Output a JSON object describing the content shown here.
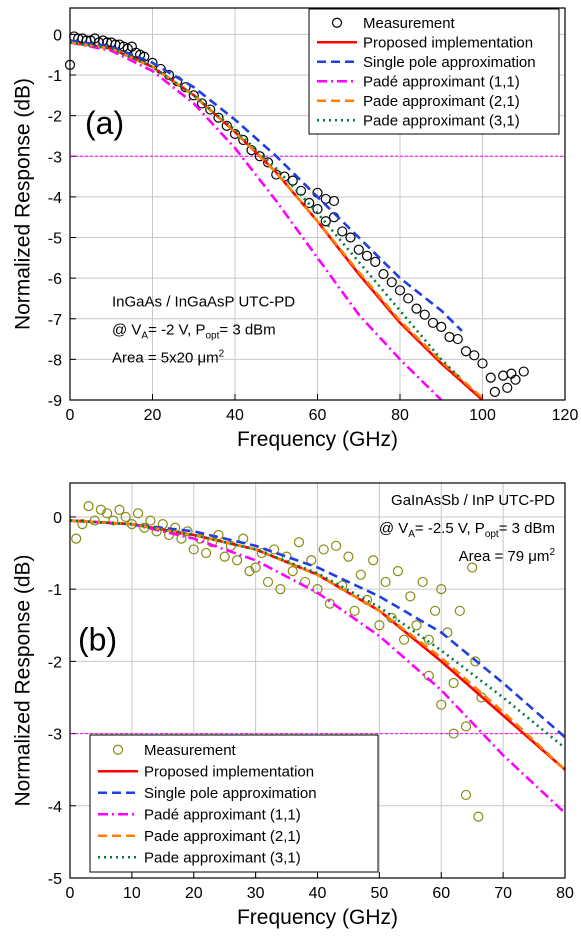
{
  "chart_data": [
    {
      "type": "line",
      "panel_label": "(a)",
      "xlabel": "Frequency (GHz)",
      "ylabel": "Normalized Response (dB)",
      "xlim": [
        0,
        120
      ],
      "ylim": [
        -9,
        0.65
      ],
      "xticks": [
        0,
        20,
        40,
        60,
        80,
        100,
        120
      ],
      "yticks": [
        -9,
        -8,
        -7,
        -6,
        -5,
        -4,
        -3,
        -2,
        -1,
        0
      ],
      "grid": true,
      "hline": -3,
      "hline_color": "#ff00ff",
      "legend": "upper right",
      "annotations": [
        [
          {
            "text": "InGaAs / InGaAsP UTC-PD"
          }
        ],
        [
          {
            "text": "@ V"
          },
          {
            "text": "A",
            "baseline": "sub"
          },
          {
            "text": "= -2 V, P"
          },
          {
            "text": "opt",
            "baseline": "sub"
          },
          {
            "text": "= 3 dBm"
          }
        ],
        [
          {
            "text": "Area = 5x20 μm"
          },
          {
            "text": "2",
            "baseline": "super"
          }
        ]
      ],
      "series": [
        {
          "name": "Measurement",
          "color": "#000000",
          "style": "marker",
          "x": [
            0,
            1,
            2,
            3,
            4,
            5,
            6,
            7,
            8,
            9,
            10,
            11,
            12,
            13,
            14,
            15,
            16,
            17,
            18,
            20,
            22,
            24,
            26,
            28,
            30,
            32,
            34,
            36,
            38,
            40,
            42,
            44,
            46,
            48,
            50,
            52,
            54,
            56,
            58,
            60,
            60,
            62,
            62,
            64,
            64,
            66,
            68,
            70,
            72,
            74,
            76,
            78,
            80,
            82,
            84,
            86,
            88,
            90,
            92,
            94,
            96,
            98,
            100,
            102,
            103,
            105,
            106,
            107,
            108,
            110
          ],
          "values": [
            -0.75,
            -0.05,
            -0.1,
            -0.1,
            -0.15,
            -0.15,
            -0.1,
            -0.2,
            -0.15,
            -0.2,
            -0.2,
            -0.25,
            -0.25,
            -0.3,
            -0.35,
            -0.3,
            -0.45,
            -0.5,
            -0.55,
            -0.7,
            -0.85,
            -1.0,
            -1.15,
            -1.3,
            -1.5,
            -1.7,
            -1.85,
            -2.05,
            -2.25,
            -2.45,
            -2.6,
            -2.85,
            -3.0,
            -3.15,
            -3.45,
            -3.5,
            -3.6,
            -3.85,
            -4.15,
            -4.3,
            -3.9,
            -4.05,
            -4.6,
            -4.5,
            -4.1,
            -4.85,
            -5.0,
            -5.3,
            -5.45,
            -5.6,
            -5.9,
            -6.1,
            -6.3,
            -6.5,
            -6.75,
            -6.9,
            -7.1,
            -7.2,
            -7.45,
            -7.5,
            -7.8,
            -7.9,
            -8.1,
            -8.45,
            -8.8,
            -8.4,
            -8.7,
            -8.35,
            -8.5,
            -8.3
          ]
        },
        {
          "name": "Proposed implementation",
          "color": "#ff0000",
          "style": "solid",
          "x": [
            0,
            10,
            20,
            30,
            40,
            50,
            60,
            70,
            80,
            90,
            100
          ],
          "values": [
            -0.2,
            -0.35,
            -0.8,
            -1.5,
            -2.4,
            -3.4,
            -4.6,
            -5.9,
            -7.1,
            -8.1,
            -9.0
          ]
        },
        {
          "name": "Single pole approximation",
          "color": "#1f3fe0",
          "style": "dash",
          "x": [
            0,
            10,
            20,
            30,
            40,
            50,
            60,
            70,
            80,
            90,
            95
          ],
          "values": [
            -0.15,
            -0.3,
            -0.7,
            -1.3,
            -2.1,
            -3.0,
            -4.0,
            -5.0,
            -6.0,
            -6.8,
            -7.3
          ]
        },
        {
          "name": "Padé approximant (1,1)",
          "color": "#ff00ff",
          "style": "dashdot",
          "x": [
            0,
            10,
            20,
            30,
            40,
            50,
            60,
            70,
            80,
            90
          ],
          "values": [
            -0.2,
            -0.4,
            -0.9,
            -1.7,
            -2.8,
            -4.1,
            -5.5,
            -6.9,
            -8.0,
            -9.0
          ]
        },
        {
          "name": "Pade approximant (2,1)",
          "color": "#ff8000",
          "style": "dash",
          "x": [
            0,
            10,
            20,
            30,
            40,
            50,
            60,
            70,
            80,
            90,
            100
          ],
          "values": [
            -0.2,
            -0.35,
            -0.8,
            -1.5,
            -2.4,
            -3.4,
            -4.6,
            -5.85,
            -7.05,
            -8.05,
            -8.95
          ]
        },
        {
          "name": "Pade approximant (3,1)",
          "color": "#007a3d",
          "style": "dot",
          "x": [
            0,
            10,
            20,
            30,
            40,
            50,
            60,
            70,
            80,
            90,
            95
          ],
          "values": [
            -0.2,
            -0.35,
            -0.8,
            -1.5,
            -2.35,
            -3.3,
            -4.4,
            -5.6,
            -6.8,
            -8.0,
            -8.5
          ]
        }
      ]
    },
    {
      "type": "line",
      "panel_label": "(b)",
      "xlabel": "Frequency (GHz)",
      "ylabel": "Normalized Response (dB)",
      "xlim": [
        0,
        80
      ],
      "ylim": [
        -5,
        0.47
      ],
      "xticks": [
        0,
        10,
        20,
        30,
        40,
        50,
        60,
        70,
        80
      ],
      "yticks": [
        -5,
        -4,
        -3,
        -2,
        -1,
        0
      ],
      "grid": true,
      "hline": -3,
      "hline_color": "#ff00ff",
      "legend": "lower left",
      "annotations": [
        [
          {
            "text": "GaInAsSb / InP UTC-PD"
          }
        ],
        [
          {
            "text": "@ V"
          },
          {
            "text": "A",
            "baseline": "sub"
          },
          {
            "text": "= -2.5 V, P"
          },
          {
            "text": "opt",
            "baseline": "sub"
          },
          {
            "text": "= 3 dBm"
          }
        ],
        [
          {
            "text": "Area = 79 μm"
          },
          {
            "text": "2",
            "baseline": "super"
          }
        ]
      ],
      "series": [
        {
          "name": "Measurement",
          "color": "#8a8a10",
          "style": "marker",
          "x": [
            1,
            2,
            3,
            4,
            5,
            6,
            7,
            8,
            9,
            10,
            11,
            12,
            13,
            14,
            15,
            16,
            17,
            18,
            19,
            20,
            21,
            22,
            23,
            24,
            25,
            26,
            27,
            28,
            29,
            30,
            31,
            32,
            33,
            34,
            35,
            36,
            37,
            38,
            39,
            40,
            41,
            42,
            43,
            44,
            45,
            46,
            47,
            48,
            49,
            50,
            51,
            52,
            53,
            54,
            55,
            56,
            57,
            58,
            58,
            59,
            60,
            60,
            61,
            62,
            62,
            63,
            64,
            64,
            65,
            65.5,
            66,
            66.5
          ],
          "values": [
            -0.3,
            -0.1,
            0.15,
            -0.05,
            0.1,
            0.05,
            -0.05,
            0.1,
            0,
            -0.1,
            0.05,
            -0.15,
            -0.05,
            -0.2,
            -0.1,
            -0.25,
            -0.15,
            -0.3,
            -0.2,
            -0.45,
            -0.3,
            -0.5,
            -0.35,
            -0.25,
            -0.55,
            -0.4,
            -0.6,
            -0.3,
            -0.75,
            -0.7,
            -0.5,
            -0.9,
            -0.45,
            -1.0,
            -0.55,
            -0.75,
            -0.35,
            -0.9,
            -0.6,
            -1.0,
            -0.45,
            -1.2,
            -0.4,
            -0.95,
            -0.55,
            -1.3,
            -0.8,
            -1.15,
            -0.6,
            -1.5,
            -0.9,
            -1.4,
            -0.75,
            -1.7,
            -1.1,
            -1.5,
            -0.9,
            -2.2,
            -1.7,
            -1.3,
            -2.6,
            -1.0,
            -1.6,
            -3.0,
            -2.3,
            -1.3,
            -3.85,
            -2.9,
            -0.7,
            -2.0,
            -4.15,
            -2.5
          ]
        },
        {
          "name": "Proposed implementation",
          "color": "#ff0000",
          "style": "solid",
          "x": [
            0,
            10,
            20,
            30,
            40,
            50,
            60,
            70,
            80
          ],
          "values": [
            -0.05,
            -0.1,
            -0.25,
            -0.45,
            -0.8,
            -1.3,
            -2.0,
            -2.75,
            -3.5
          ]
        },
        {
          "name": "Single pole approximation",
          "color": "#1f3fe0",
          "style": "dash",
          "x": [
            0,
            10,
            20,
            30,
            40,
            50,
            60,
            70,
            80
          ],
          "values": [
            -0.05,
            -0.1,
            -0.2,
            -0.4,
            -0.7,
            -1.1,
            -1.6,
            -2.3,
            -3.05
          ]
        },
        {
          "name": "Padé approximant (1,1)",
          "color": "#ff00ff",
          "style": "dashdot",
          "x": [
            0,
            10,
            20,
            30,
            40,
            50,
            60,
            70,
            80
          ],
          "values": [
            -0.05,
            -0.1,
            -0.3,
            -0.6,
            -1.05,
            -1.65,
            -2.4,
            -3.3,
            -4.1
          ]
        },
        {
          "name": "Pade approximant (2,1)",
          "color": "#ff8000",
          "style": "dash",
          "x": [
            0,
            10,
            20,
            30,
            40,
            50,
            60,
            70,
            80
          ],
          "values": [
            -0.05,
            -0.1,
            -0.25,
            -0.45,
            -0.8,
            -1.3,
            -1.95,
            -2.7,
            -3.5
          ]
        },
        {
          "name": "Pade approximant (3,1)",
          "color": "#007a3d",
          "style": "dot",
          "x": [
            0,
            10,
            20,
            30,
            40,
            50,
            60,
            70,
            80
          ],
          "values": [
            -0.05,
            -0.1,
            -0.25,
            -0.45,
            -0.78,
            -1.25,
            -1.85,
            -2.5,
            -3.2
          ]
        }
      ]
    }
  ]
}
